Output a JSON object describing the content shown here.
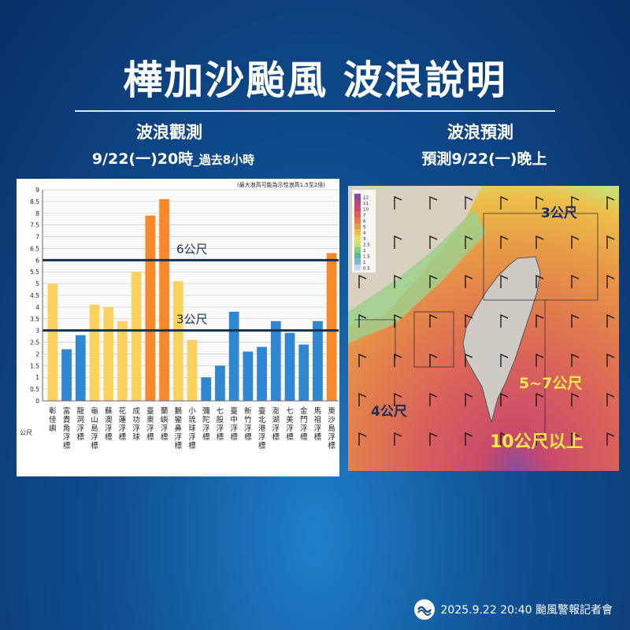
{
  "title": "樺加沙颱風 波浪說明",
  "left": {
    "heading": "波浪觀測",
    "subtitle_main": "9/22(一)20時",
    "subtitle_small": "_過去8小時"
  },
  "right": {
    "heading": "波浪預測",
    "subtitle": "預測9/22(一)晚上"
  },
  "chart_data": {
    "type": "bar",
    "note": "(最大浪高可能為示性浪高1.5至2倍)",
    "ylabel": "公尺",
    "ylim": [
      0,
      9
    ],
    "yticks": [
      "0",
      "0.5",
      "1",
      "1.5",
      "2",
      "2.5",
      "3",
      "3.5",
      "4",
      "4.5",
      "5",
      "5.5",
      "6",
      "6.5",
      "7",
      "7.5",
      "8",
      "8.5",
      "9"
    ],
    "categories": [
      "彰佳嶼",
      "富貴角浮標",
      "龍洞浮標",
      "龜山島浮標",
      "蘇澳浮標",
      "花蓮浮標",
      "成功浮球",
      "臺東浮標",
      "蘭嶼浮標",
      "鵝鑾鼻浮標",
      "小琉球浮標",
      "彌陀浮標",
      "七股浮標",
      "臺中浮標",
      "新竹浮標",
      "臺北港浮標",
      "澎湖浮標",
      "七美浮標",
      "金門浮標",
      "馬祖浮標",
      "東沙島浮標"
    ],
    "values": [
      5.0,
      2.2,
      2.8,
      4.1,
      4.0,
      3.4,
      5.5,
      7.9,
      8.6,
      5.1,
      2.6,
      1.0,
      1.5,
      3.8,
      2.1,
      2.3,
      3.4,
      2.9,
      2.4,
      3.4,
      6.3
    ],
    "bar_colors": [
      "#fcd25f",
      "#2f86d1",
      "#2f86d1",
      "#fcd25f",
      "#fcd25f",
      "#fcd25f",
      "#fcd25f",
      "#f7892a",
      "#f7892a",
      "#fcd25f",
      "#fcd25f",
      "#2f86d1",
      "#2f86d1",
      "#2f86d1",
      "#2f86d1",
      "#2f86d1",
      "#2f86d1",
      "#2f86d1",
      "#2f86d1",
      "#2f86d1",
      "#f7892a"
    ],
    "reference_lines": [
      {
        "value": 6,
        "label": "6公尺"
      },
      {
        "value": 3,
        "label": "3公尺"
      }
    ],
    "grid": true
  },
  "map": {
    "legend_values": [
      "12",
      "11",
      "10",
      "7",
      "6",
      "5",
      "4",
      "3",
      "2.5",
      "2",
      "1.5",
      "1",
      "0.5"
    ],
    "legend_colors": [
      "#8a4b9e",
      "#b24a86",
      "#c94a6a",
      "#d9605c",
      "#e27a4e",
      "#e89a46",
      "#edc04a",
      "#eedc6a",
      "#c9e27a",
      "#86cf7a",
      "#59b9a0",
      "#7fb2dd",
      "#c8d8ee"
    ],
    "labels": [
      "3公尺",
      "4公尺",
      "5~7公尺",
      "10公尺以上"
    ]
  },
  "footer": {
    "text": "2025.9.22  20:40 颱風警報記者會"
  }
}
